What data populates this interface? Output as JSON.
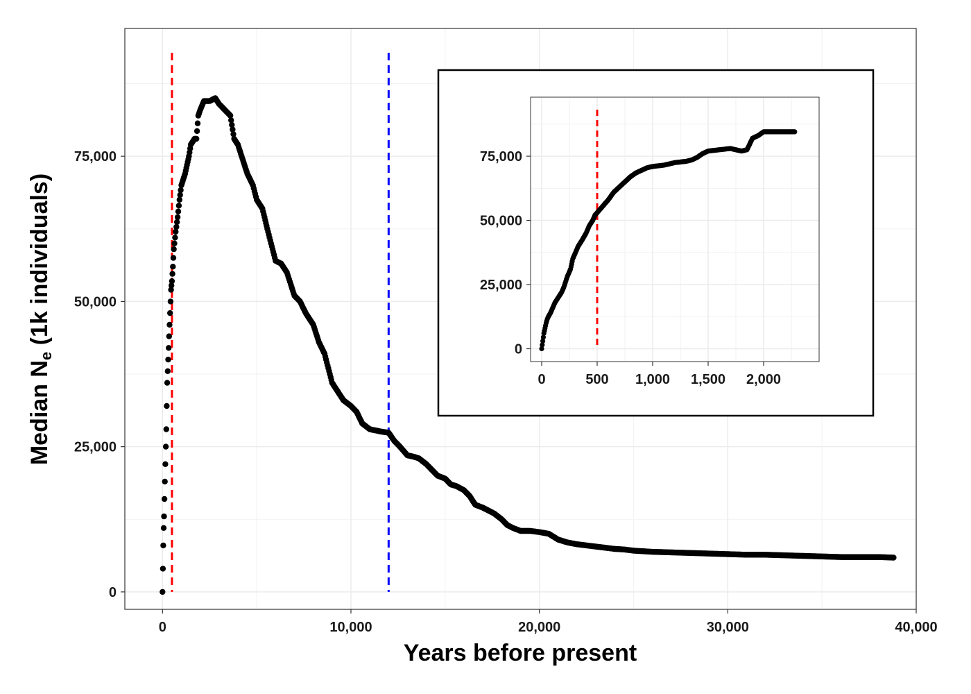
{
  "chart_data": {
    "type": "scatter",
    "title": "",
    "xlabel": "Years before present",
    "ylabel_main": "Median N",
    "ylabel_sub": "e",
    "ylabel_rest": " (1k individuals)",
    "xlim": [
      -2000,
      40000
    ],
    "ylim": [
      -3000,
      97000
    ],
    "x_ticks": [
      0,
      10000,
      20000,
      30000,
      40000
    ],
    "x_tick_labels": [
      "0",
      "10,000",
      "20,000",
      "30,000",
      "40,000"
    ],
    "y_ticks": [
      0,
      25000,
      50000,
      75000
    ],
    "y_tick_labels": [
      "0",
      "25,000",
      "50,000",
      "75,000"
    ],
    "grid": true,
    "point_color": "#000000",
    "reference_lines": [
      {
        "x": 500,
        "color": "#ff0000",
        "style": "dashed"
      },
      {
        "x": 12000,
        "color": "#0000ff",
        "style": "dashed"
      }
    ],
    "series": [
      {
        "x": [
          0,
          20,
          40,
          60,
          80,
          100,
          150,
          200,
          250,
          300,
          350,
          400,
          450,
          500,
          550,
          600,
          700,
          800,
          900,
          1000,
          1100,
          1200,
          1300,
          1400,
          1500,
          1600,
          1700,
          1800,
          1900,
          2000,
          2200,
          2500,
          2800,
          3000,
          3300,
          3600,
          3800,
          4000,
          4200,
          4500,
          4800,
          5000,
          5300,
          5600,
          6000,
          6300,
          6600,
          7000,
          7300,
          7600,
          8000,
          8300,
          8600,
          9000,
          9300,
          9600,
          10000,
          10300,
          10600,
          11000,
          11300,
          11600,
          12000,
          12300,
          12600,
          13000,
          13300,
          13600,
          14000,
          14300,
          14600,
          15000,
          15300,
          15600,
          16000,
          16300,
          16600,
          17000,
          17300,
          17600,
          18000,
          18300,
          18600,
          19000,
          19500,
          20000,
          20500,
          21000,
          21500,
          22000,
          22500,
          23000,
          23500,
          24000,
          24500,
          25000,
          26000,
          27000,
          28000,
          29000,
          30000,
          31000,
          32000,
          33000,
          34000,
          35000,
          36000,
          37000,
          38000,
          38800
        ],
        "y": [
          0,
          4000,
          8000,
          11000,
          13000,
          16000,
          22000,
          28000,
          36000,
          40000,
          44000,
          48000,
          52000,
          53500,
          56000,
          59000,
          62000,
          64500,
          67500,
          70000,
          71000,
          72000,
          73500,
          75000,
          77000,
          77500,
          78000,
          78000,
          82000,
          83000,
          84500,
          84500,
          85000,
          84000,
          83000,
          82000,
          78000,
          77000,
          75000,
          72000,
          70000,
          67500,
          66000,
          62000,
          57000,
          56500,
          55000,
          51000,
          50000,
          48000,
          46000,
          43000,
          41000,
          36000,
          34500,
          33000,
          32000,
          31000,
          29000,
          28000,
          27800,
          27600,
          27400,
          26000,
          25000,
          23500,
          23300,
          23000,
          22000,
          21000,
          20000,
          19500,
          18500,
          18200,
          17500,
          16500,
          15000,
          14500,
          14000,
          13500,
          12500,
          11500,
          11000,
          10500,
          10500,
          10300,
          10000,
          9000,
          8500,
          8200,
          8000,
          7800,
          7600,
          7400,
          7300,
          7100,
          6900,
          6800,
          6700,
          6600,
          6500,
          6400,
          6400,
          6300,
          6200,
          6100,
          6000,
          6000,
          6000,
          5900
        ]
      }
    ],
    "inset": {
      "type": "scatter",
      "xlim": [
        -100,
        2500
      ],
      "ylim": [
        -5000,
        98000
      ],
      "x_ticks": [
        0,
        500,
        1000,
        1500,
        2000
      ],
      "x_tick_labels": [
        "0",
        "500",
        "1,000",
        "1,500",
        "2,000"
      ],
      "y_ticks": [
        0,
        25000,
        50000,
        75000
      ],
      "y_tick_labels": [
        "0",
        "25,000",
        "50,000",
        "75,000"
      ],
      "grid": true,
      "reference_lines": [
        {
          "x": 500,
          "color": "#ff0000",
          "style": "dashed"
        }
      ],
      "series": [
        {
          "x": [
            0,
            10,
            20,
            30,
            40,
            50,
            60,
            80,
            100,
            120,
            150,
            180,
            200,
            230,
            260,
            280,
            300,
            330,
            360,
            400,
            430,
            460,
            480,
            500,
            530,
            560,
            600,
            650,
            700,
            750,
            800,
            850,
            900,
            950,
            1000,
            1100,
            1200,
            1300,
            1350,
            1400,
            1450,
            1500,
            1600,
            1700,
            1800,
            1850,
            1900,
            1950,
            2000,
            2100,
            2200,
            2280
          ],
          "y": [
            0,
            3000,
            6000,
            8000,
            10000,
            11500,
            12500,
            14000,
            16000,
            18000,
            20000,
            22000,
            24000,
            28000,
            31000,
            35000,
            37000,
            40000,
            42000,
            45000,
            48000,
            50000,
            52000,
            53000,
            54500,
            56000,
            58000,
            61000,
            63000,
            65000,
            67000,
            68500,
            69500,
            70500,
            71000,
            71500,
            72500,
            73000,
            73500,
            74500,
            76000,
            77000,
            77500,
            78000,
            77000,
            77500,
            82000,
            83000,
            84500,
            84500,
            84500,
            84500
          ]
        }
      ]
    }
  }
}
